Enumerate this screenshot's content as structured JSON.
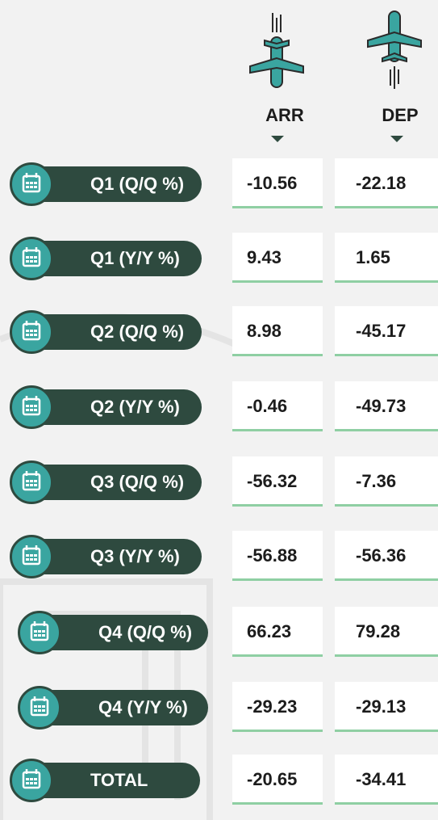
{
  "header": {
    "columns": [
      "ARR",
      "DEP"
    ]
  },
  "table": {
    "rows": [
      [
        "Q1 (Q/Q %)",
        "-10.56",
        "-22.18"
      ],
      [
        "Q1 (Y/Y %)",
        "9.43",
        "1.65"
      ],
      [
        "Q2 (Q/Q %)",
        "8.98",
        "-45.17"
      ],
      [
        "Q2 (Y/Y %)",
        "-0.46",
        "-49.73"
      ],
      [
        "Q3 (Q/Q %)",
        "-56.32",
        "-7.36"
      ],
      [
        "Q3 (Y/Y %)",
        "-56.88",
        "-56.36"
      ],
      [
        "Q4 (Q/Q %)",
        "66.23",
        "79.28"
      ],
      [
        "Q4 (Y/Y %)",
        "-29.23",
        "-29.13"
      ],
      [
        "TOTAL",
        "-20.65",
        "-34.41"
      ]
    ]
  }
}
